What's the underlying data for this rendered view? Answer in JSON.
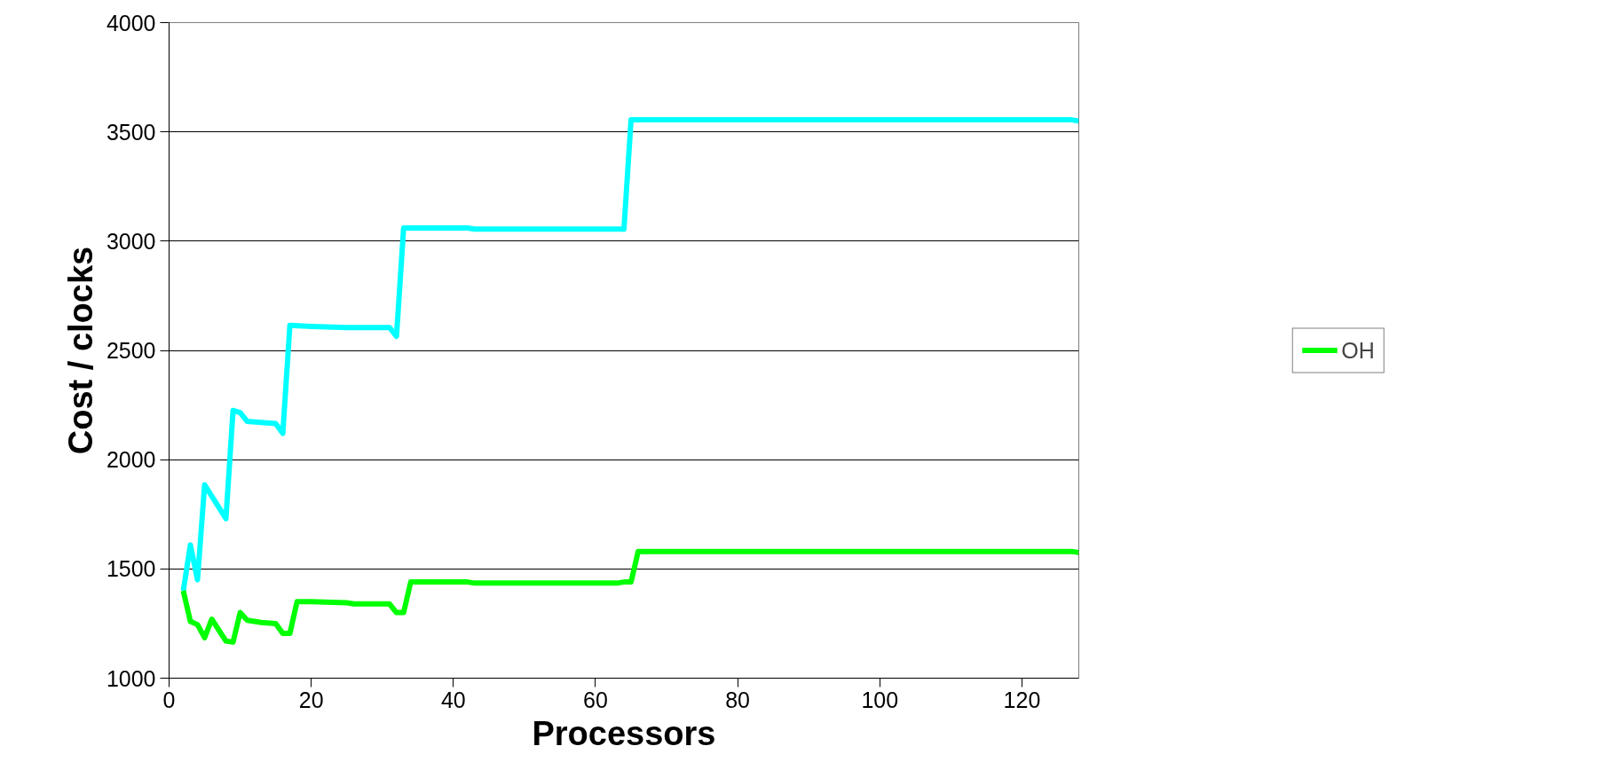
{
  "chart_data": {
    "type": "line",
    "xlabel": "Processors",
    "ylabel": "Cost / clocks",
    "xlim": [
      0,
      128
    ],
    "xticks": [
      0,
      20,
      40,
      60,
      80,
      100,
      120
    ],
    "ylim": [
      1000,
      4000
    ],
    "yticks": [
      1000,
      1500,
      2000,
      2500,
      3000,
      3500,
      4000
    ],
    "grid": "y",
    "legend": "right",
    "marker": "none",
    "line_style": "solid",
    "series": [
      {
        "color": "#00ffff",
        "x": [
          2,
          3,
          4,
          5,
          8,
          9,
          10,
          11,
          15,
          16,
          17,
          20,
          25,
          31,
          32,
          33,
          42,
          43,
          63,
          64,
          65,
          127,
          128
        ],
        "values": [
          1400,
          1610,
          1450,
          1885,
          1730,
          2225,
          2215,
          2175,
          2165,
          2120,
          2615,
          2610,
          2605,
          2605,
          2565,
          3060,
          3060,
          3055,
          3055,
          3055,
          3555,
          3555,
          3550
        ]
      },
      {
        "name": "OH",
        "color": "#00ff00",
        "x": [
          2,
          3,
          4,
          5,
          6,
          8,
          9,
          10,
          11,
          13,
          15,
          16,
          17,
          18,
          20,
          25,
          26,
          31,
          32,
          33,
          34,
          42,
          43,
          63,
          64,
          65,
          66,
          127,
          128
        ],
        "values": [
          1400,
          1260,
          1245,
          1185,
          1270,
          1170,
          1165,
          1300,
          1265,
          1255,
          1250,
          1205,
          1205,
          1350,
          1350,
          1345,
          1340,
          1340,
          1300,
          1300,
          1440,
          1440,
          1435,
          1435,
          1440,
          1440,
          1580,
          1580,
          1575
        ]
      }
    ]
  }
}
